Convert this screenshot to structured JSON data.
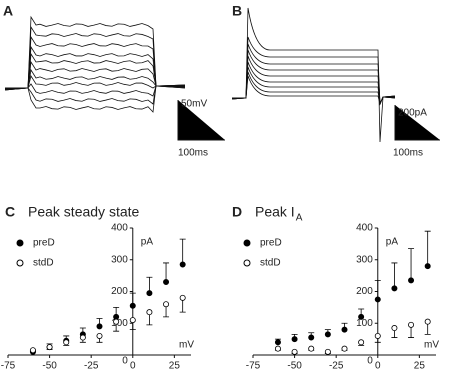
{
  "panel_a": {
    "label": "A",
    "scale_y": "50mV",
    "scale_x": "100ms"
  },
  "panel_b": {
    "label": "B",
    "scale_y": "200pA",
    "scale_x": "100ms"
  },
  "chart_data": [
    {
      "type": "scatter",
      "panel": "C",
      "title": "Peak steady state",
      "y_unit": "pA",
      "x_unit": "mV",
      "xlim": [
        -75,
        35
      ],
      "ylim": [
        0,
        400
      ],
      "xticks": [
        -75,
        -50,
        -25,
        0,
        25
      ],
      "yticks": [
        0,
        100,
        200,
        300,
        400
      ],
      "x": [
        -60,
        -50,
        -40,
        -30,
        -20,
        -10,
        0,
        10,
        20,
        30
      ],
      "series": [
        {
          "name": "preD",
          "color": "#000000",
          "marker": "filled",
          "values": [
            10,
            25,
            45,
            65,
            90,
            120,
            155,
            195,
            230,
            285
          ],
          "errors": [
            5,
            10,
            15,
            20,
            25,
            30,
            40,
            50,
            60,
            80
          ]
        },
        {
          "name": "stdD",
          "color": "#000000",
          "marker": "open",
          "values": [
            15,
            25,
            40,
            55,
            60,
            105,
            110,
            135,
            160,
            180
          ],
          "errors": [
            5,
            8,
            10,
            15,
            20,
            30,
            30,
            40,
            40,
            45
          ]
        }
      ]
    },
    {
      "type": "scatter",
      "panel": "D",
      "title": "Peak  I",
      "title_subscript": "A",
      "y_unit": "pA",
      "x_unit": "mV",
      "xlim": [
        -75,
        35
      ],
      "ylim": [
        0,
        400
      ],
      "xticks": [
        -75,
        -50,
        -25,
        0,
        25
      ],
      "yticks": [
        0,
        100,
        200,
        300,
        400
      ],
      "x": [
        -60,
        -50,
        -40,
        -30,
        -20,
        -10,
        0,
        10,
        20,
        30
      ],
      "series": [
        {
          "name": "preD",
          "color": "#000000",
          "marker": "filled",
          "values": [
            40,
            50,
            55,
            65,
            80,
            120,
            175,
            210,
            235,
            280
          ],
          "errors": [
            10,
            15,
            15,
            15,
            20,
            25,
            60,
            80,
            100,
            110
          ]
        },
        {
          "name": "stdD",
          "color": "#000000",
          "marker": "open",
          "values": [
            20,
            10,
            20,
            10,
            20,
            40,
            60,
            85,
            95,
            105
          ],
          "errors": [
            5,
            5,
            5,
            5,
            5,
            10,
            20,
            30,
            40,
            40
          ]
        }
      ]
    }
  ]
}
